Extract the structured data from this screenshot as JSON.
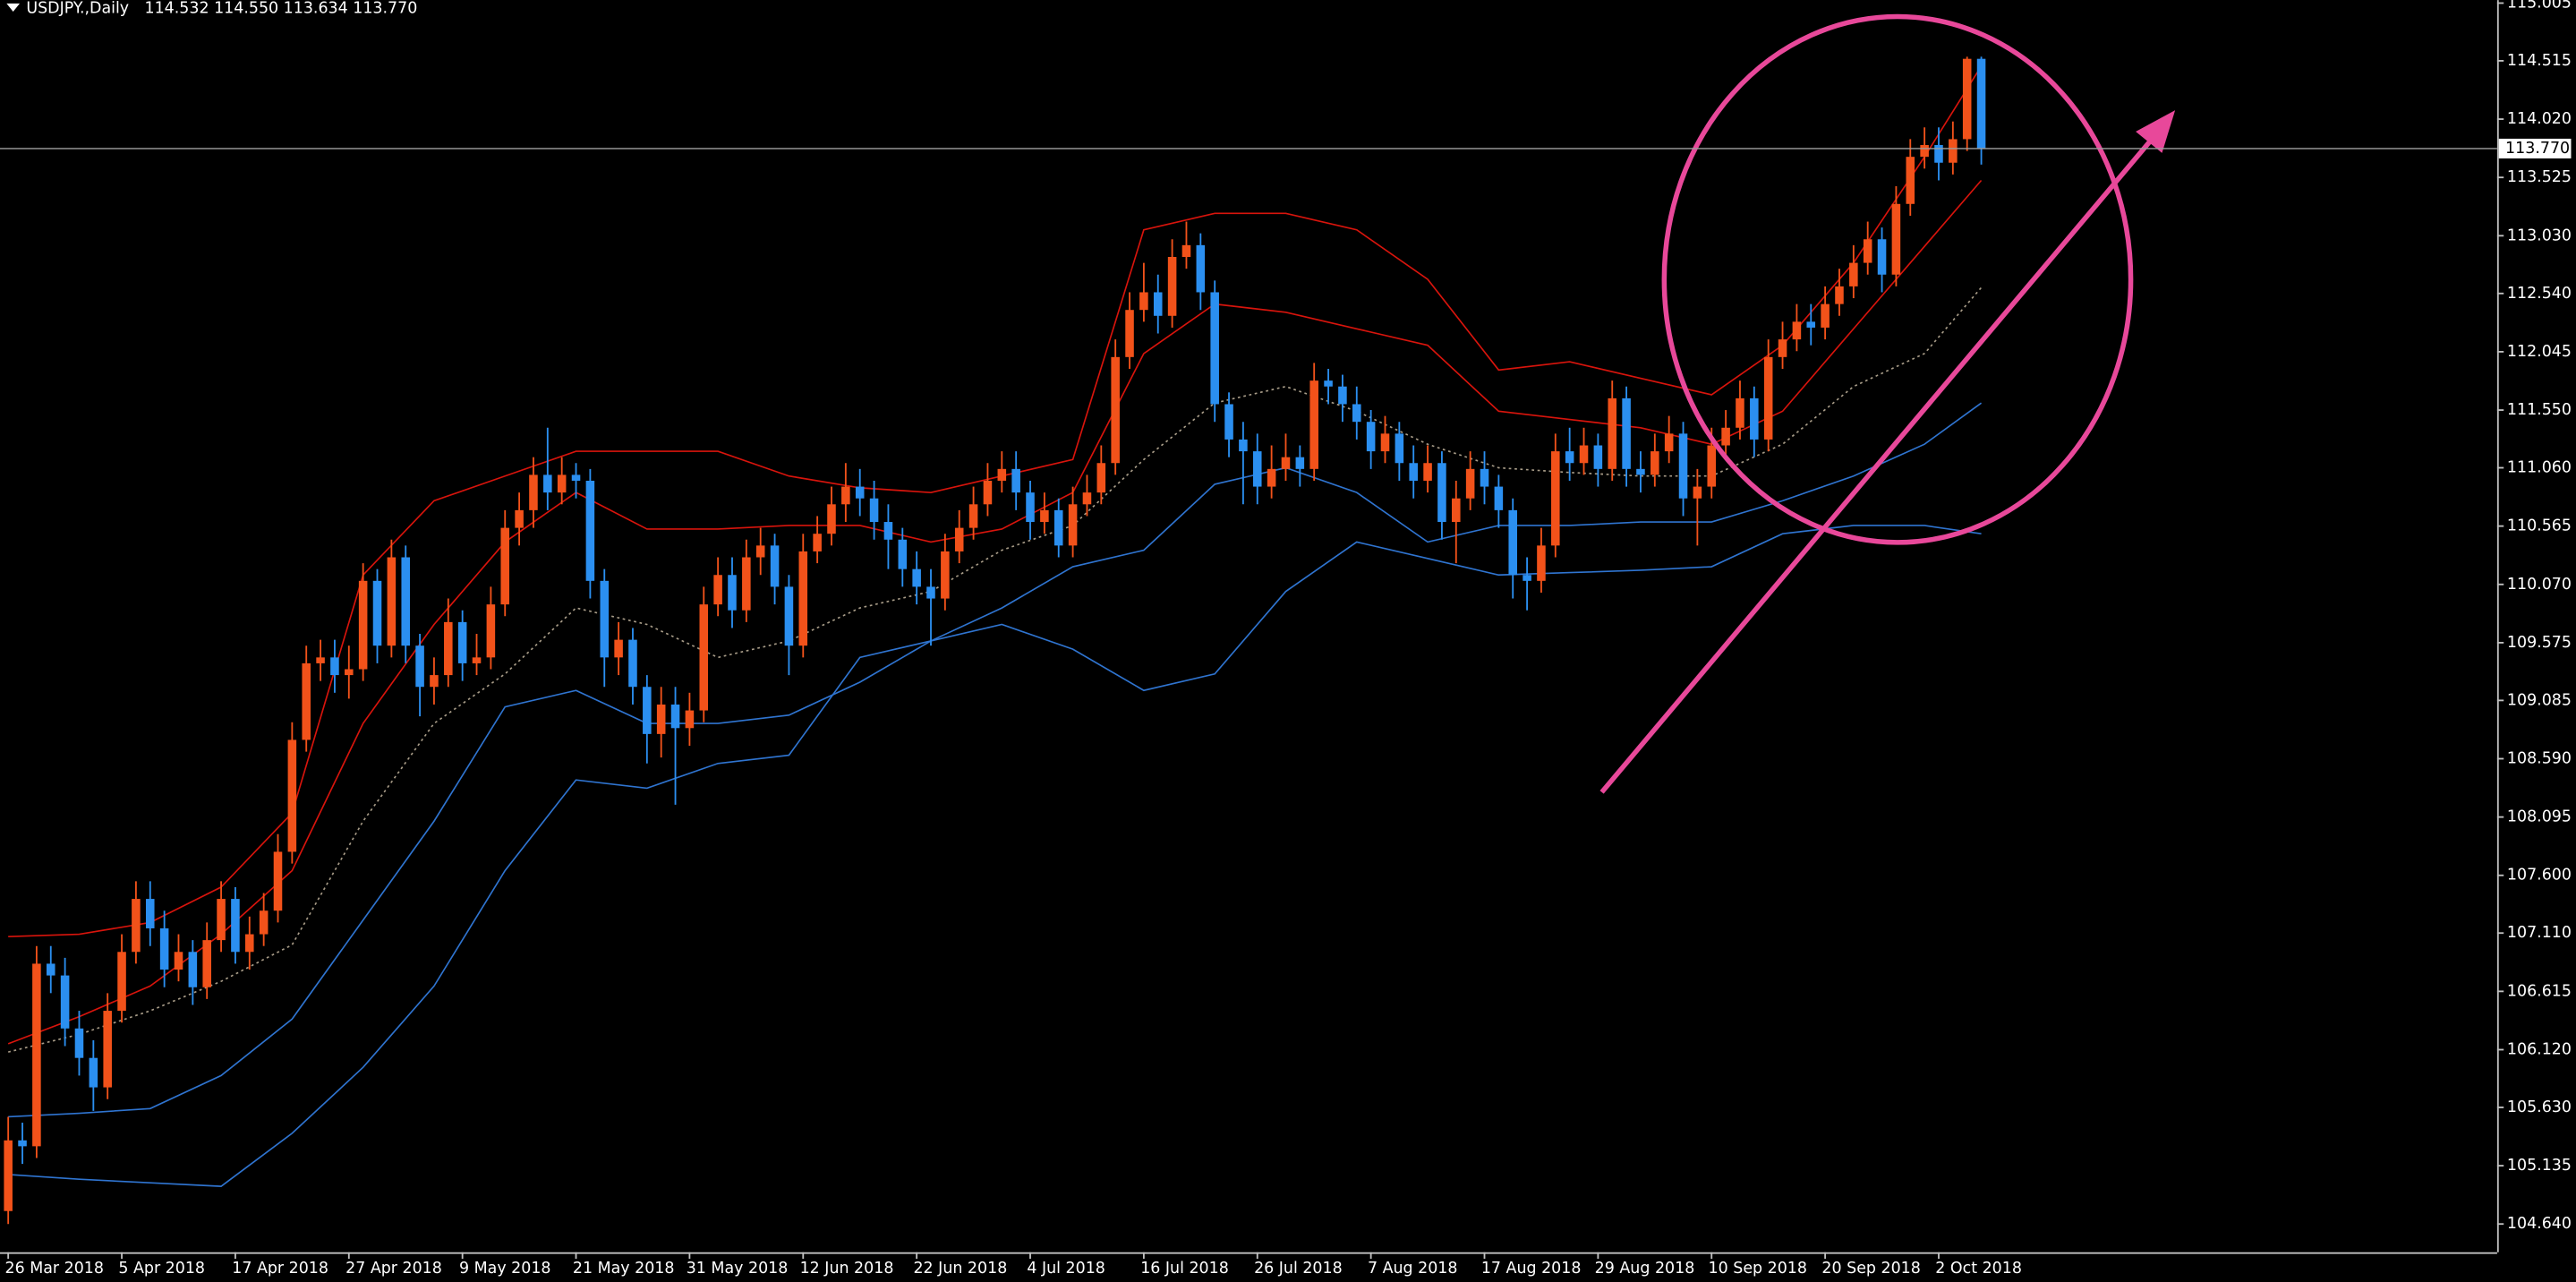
{
  "chart_data": {
    "type": "candlestick",
    "symbol": "USDJPY.,Daily",
    "ohlc_text": "114.532 114.550 113.634 113.770",
    "up_color": "#f2521a",
    "down_color": "#2b8ff0",
    "categories": [
      "26 Mar 2018",
      null,
      null,
      null,
      null,
      null,
      null,
      null,
      "5 Apr 2018",
      null,
      null,
      null,
      null,
      null,
      null,
      null,
      "17 Apr 2018",
      null,
      null,
      null,
      null,
      null,
      null,
      null,
      "27 Apr 2018",
      null,
      null,
      null,
      null,
      null,
      null,
      null,
      "9 May 2018",
      null,
      null,
      null,
      null,
      null,
      null,
      null,
      "21 May 2018",
      null,
      null,
      null,
      null,
      null,
      null,
      null,
      "31 May 2018",
      null,
      null,
      null,
      null,
      null,
      null,
      null,
      "12 Jun 2018",
      null,
      null,
      null,
      null,
      null,
      null,
      null,
      "22 Jun 2018",
      null,
      null,
      null,
      null,
      null,
      null,
      null,
      "4 Jul 2018",
      null,
      null,
      null,
      null,
      null,
      null,
      null,
      "16 Jul 2018",
      null,
      null,
      null,
      null,
      null,
      null,
      null,
      "26 Jul 2018",
      null,
      null,
      null,
      null,
      null,
      null,
      null,
      "7 Aug 2018",
      null,
      null,
      null,
      null,
      null,
      null,
      null,
      "17 Aug 2018",
      null,
      null,
      null,
      null,
      null,
      null,
      null,
      "29 Aug 2018",
      null,
      null,
      null,
      null,
      null,
      null,
      null,
      "10 Sep 2018",
      null,
      null,
      null,
      null,
      null,
      null,
      null,
      "20 Sep 2018",
      null,
      null,
      null,
      null,
      null,
      null,
      null,
      "2 Oct 2018",
      null,
      null,
      null
    ],
    "open": [
      104.75,
      105.35,
      105.3,
      106.85,
      106.75,
      106.3,
      106.05,
      105.8,
      106.45,
      106.95,
      107.4,
      107.15,
      106.8,
      106.95,
      106.65,
      107.05,
      107.4,
      106.95,
      107.1,
      107.3,
      107.8,
      108.75,
      109.4,
      109.45,
      109.3,
      109.35,
      110.1,
      109.55,
      110.3,
      109.55,
      109.2,
      109.3,
      109.75,
      109.4,
      109.45,
      109.9,
      110.55,
      110.7,
      111.0,
      110.85,
      111.0,
      110.95,
      110.1,
      109.45,
      109.6,
      109.2,
      108.8,
      109.05,
      108.85,
      109.0,
      109.9,
      110.15,
      109.85,
      110.3,
      110.4,
      110.05,
      109.55,
      110.35,
      110.5,
      110.75,
      110.9,
      110.8,
      110.6,
      110.45,
      110.2,
      110.05,
      109.95,
      110.35,
      110.55,
      110.75,
      110.95,
      111.05,
      110.85,
      110.6,
      110.7,
      110.4,
      110.75,
      110.85,
      111.1,
      112.0,
      112.4,
      112.55,
      112.35,
      112.85,
      112.95,
      112.55,
      111.6,
      111.3,
      111.2,
      110.9,
      111.05,
      111.15,
      111.05,
      111.8,
      111.75,
      111.6,
      111.45,
      111.2,
      111.35,
      111.1,
      110.95,
      111.1,
      110.6,
      110.8,
      111.05,
      110.9,
      110.7,
      110.15,
      110.1,
      110.4,
      111.2,
      111.1,
      111.25,
      111.05,
      111.65,
      111.05,
      111.0,
      111.2,
      111.35,
      110.8,
      110.9,
      111.25,
      111.4,
      111.65,
      111.3,
      112.0,
      112.15,
      112.3,
      112.25,
      112.45,
      112.6,
      112.8,
      113.0,
      112.7,
      113.3,
      113.7,
      113.8,
      113.65,
      113.85,
      114.532
    ],
    "high": [
      105.55,
      105.5,
      107.0,
      107.0,
      106.9,
      106.45,
      106.2,
      106.6,
      107.1,
      107.55,
      107.55,
      107.3,
      107.1,
      107.05,
      107.2,
      107.55,
      107.5,
      107.25,
      107.45,
      107.95,
      108.9,
      109.55,
      109.6,
      109.6,
      109.55,
      110.25,
      110.2,
      110.45,
      110.4,
      109.65,
      109.45,
      109.95,
      109.85,
      109.65,
      110.05,
      110.7,
      110.85,
      111.15,
      111.4,
      111.15,
      111.1,
      111.05,
      110.2,
      109.75,
      109.7,
      109.3,
      109.2,
      109.2,
      109.15,
      110.05,
      110.3,
      110.3,
      110.45,
      110.55,
      110.5,
      110.15,
      110.5,
      110.65,
      110.9,
      111.1,
      111.05,
      110.95,
      110.75,
      110.55,
      110.35,
      110.2,
      110.5,
      110.7,
      110.9,
      111.1,
      111.2,
      111.2,
      110.95,
      110.85,
      110.8,
      110.9,
      111.0,
      111.25,
      112.15,
      112.55,
      112.8,
      112.7,
      113.0,
      113.15,
      113.05,
      112.65,
      111.7,
      111.45,
      111.35,
      111.25,
      111.35,
      111.25,
      111.95,
      111.9,
      111.85,
      111.75,
      111.55,
      111.5,
      111.45,
      111.25,
      111.25,
      111.2,
      110.95,
      111.2,
      111.2,
      111.0,
      110.8,
      110.3,
      110.55,
      111.35,
      111.4,
      111.4,
      111.35,
      111.8,
      111.75,
      111.2,
      111.35,
      111.5,
      111.45,
      111.05,
      111.4,
      111.55,
      111.8,
      111.75,
      112.15,
      112.3,
      112.45,
      112.45,
      112.6,
      112.75,
      112.95,
      113.15,
      113.1,
      113.45,
      113.85,
      113.95,
      113.95,
      114.0,
      114.55,
      114.55
    ],
    "low": [
      104.64,
      105.15,
      105.2,
      106.6,
      106.15,
      105.9,
      105.6,
      105.7,
      106.35,
      106.85,
      107.0,
      106.65,
      106.7,
      106.5,
      106.55,
      106.95,
      106.85,
      106.8,
      107.0,
      107.2,
      107.7,
      108.65,
      109.25,
      109.15,
      109.1,
      109.25,
      109.4,
      109.45,
      109.4,
      108.95,
      109.05,
      109.2,
      109.25,
      109.3,
      109.35,
      109.8,
      110.4,
      110.55,
      110.7,
      110.75,
      110.8,
      109.95,
      109.2,
      109.3,
      109.05,
      108.55,
      108.6,
      108.2,
      108.7,
      108.9,
      109.8,
      109.7,
      109.75,
      110.15,
      109.9,
      109.3,
      109.45,
      110.25,
      110.4,
      110.6,
      110.65,
      110.45,
      110.2,
      110.05,
      109.9,
      109.55,
      109.85,
      110.25,
      110.45,
      110.65,
      110.85,
      110.7,
      110.45,
      110.5,
      110.3,
      110.3,
      110.65,
      110.75,
      111.0,
      111.9,
      112.3,
      112.2,
      112.25,
      112.75,
      112.4,
      111.45,
      111.15,
      110.75,
      110.75,
      110.8,
      110.95,
      110.9,
      110.95,
      111.6,
      111.45,
      111.3,
      111.05,
      111.1,
      110.95,
      110.8,
      110.85,
      110.45,
      110.25,
      110.7,
      110.75,
      110.55,
      109.95,
      109.85,
      110.0,
      110.3,
      110.95,
      111.0,
      110.9,
      110.95,
      110.9,
      110.85,
      110.9,
      111.1,
      110.65,
      110.4,
      110.8,
      111.15,
      111.3,
      111.15,
      111.2,
      111.9,
      112.05,
      112.1,
      112.15,
      112.35,
      112.5,
      112.7,
      112.55,
      112.6,
      113.2,
      113.6,
      113.5,
      113.55,
      113.75,
      113.634
    ],
    "close": [
      105.35,
      105.3,
      106.85,
      106.75,
      106.3,
      106.05,
      105.8,
      106.45,
      106.95,
      107.4,
      107.15,
      106.8,
      106.95,
      106.65,
      107.05,
      107.4,
      106.95,
      107.1,
      107.3,
      107.8,
      108.75,
      109.4,
      109.45,
      109.3,
      109.35,
      110.1,
      109.55,
      110.3,
      109.55,
      109.2,
      109.3,
      109.75,
      109.4,
      109.45,
      109.9,
      110.55,
      110.7,
      111.0,
      110.85,
      111.0,
      110.95,
      110.1,
      109.45,
      109.6,
      109.2,
      108.8,
      109.05,
      108.85,
      109.0,
      109.9,
      110.15,
      109.85,
      110.3,
      110.4,
      110.05,
      109.55,
      110.35,
      110.5,
      110.75,
      110.9,
      110.8,
      110.6,
      110.45,
      110.2,
      110.05,
      109.95,
      110.35,
      110.55,
      110.75,
      110.95,
      111.05,
      110.85,
      110.6,
      110.7,
      110.4,
      110.75,
      110.85,
      111.1,
      112.0,
      112.4,
      112.55,
      112.35,
      112.85,
      112.95,
      112.55,
      111.6,
      111.3,
      111.2,
      110.9,
      111.05,
      111.15,
      111.05,
      111.8,
      111.75,
      111.6,
      111.45,
      111.2,
      111.35,
      111.1,
      110.95,
      111.1,
      110.6,
      110.8,
      111.05,
      110.9,
      110.7,
      110.15,
      110.1,
      110.4,
      111.2,
      111.1,
      111.25,
      111.05,
      111.65,
      111.05,
      111.0,
      111.2,
      111.35,
      110.8,
      110.9,
      111.25,
      111.4,
      111.65,
      111.3,
      112.0,
      112.15,
      112.3,
      112.25,
      112.45,
      112.6,
      112.8,
      113.0,
      112.7,
      113.3,
      113.7,
      113.8,
      113.65,
      113.85,
      114.532,
      113.77
    ],
    "band_x": [
      0,
      5,
      10,
      15,
      20,
      25,
      30,
      35,
      40,
      45,
      50,
      55,
      60,
      65,
      70,
      75,
      80,
      85,
      90,
      95,
      100,
      105,
      110,
      115,
      120,
      125,
      130,
      135,
      139
    ],
    "bands": [
      {
        "color": "#d8140c",
        "dash": false,
        "values": [
          107.08,
          107.1,
          107.2,
          107.5,
          108.13,
          110.15,
          110.78,
          110.99,
          111.2,
          111.2,
          111.2,
          110.99,
          110.89,
          110.85,
          110.99,
          111.13,
          113.08,
          113.22,
          113.22,
          113.08,
          112.66,
          111.89,
          111.96,
          111.82,
          111.68,
          112.1,
          112.8,
          113.7,
          114.47
        ]
      },
      {
        "color": "#d8140c",
        "dash": false,
        "values": [
          106.17,
          106.4,
          106.66,
          107.1,
          107.64,
          108.89,
          109.73,
          110.43,
          110.85,
          110.54,
          110.54,
          110.57,
          110.57,
          110.43,
          110.54,
          110.85,
          112.03,
          112.45,
          112.38,
          112.24,
          112.1,
          111.54,
          111.47,
          111.4,
          111.26,
          111.54,
          112.24,
          112.94,
          113.5
        ]
      },
      {
        "color": "#a89c88",
        "dash": true,
        "values": [
          106.1,
          106.25,
          106.45,
          106.7,
          107.01,
          108.06,
          108.89,
          109.31,
          109.87,
          109.73,
          109.45,
          109.59,
          109.87,
          110.01,
          110.36,
          110.57,
          111.13,
          111.61,
          111.75,
          111.54,
          111.26,
          111.06,
          111.02,
          110.99,
          110.99,
          111.26,
          111.75,
          112.03,
          112.59
        ]
      },
      {
        "color": "#2f74d0",
        "dash": false,
        "values": [
          105.55,
          105.58,
          105.62,
          105.9,
          106.38,
          107.22,
          108.06,
          109.03,
          109.17,
          108.89,
          108.89,
          108.96,
          109.24,
          109.59,
          109.87,
          110.22,
          110.36,
          110.92,
          111.06,
          110.85,
          110.43,
          110.57,
          110.57,
          110.6,
          110.6,
          110.78,
          110.99,
          111.26,
          111.61
        ]
      },
      {
        "color": "#2f74d0",
        "dash": false,
        "values": [
          105.06,
          105.02,
          104.99,
          104.96,
          105.41,
          105.97,
          106.66,
          107.64,
          108.41,
          108.34,
          108.55,
          108.62,
          109.45,
          109.59,
          109.73,
          109.52,
          109.17,
          109.31,
          110.01,
          110.43,
          110.29,
          110.15,
          110.17,
          110.19,
          110.22,
          110.5,
          110.57,
          110.57,
          110.5
        ]
      }
    ],
    "current_price": {
      "value": 113.77,
      "label": "113.770"
    },
    "ylim": [
      104.4,
      115.03
    ],
    "yticks": [
      115.005,
      114.515,
      {
        "value": 114.02,
        "label": "114.020"
      },
      113.525,
      {
        "value": 113.03,
        "label": "113.030"
      },
      {
        "value": 112.54,
        "label": "112.540"
      },
      112.045,
      {
        "value": 111.55,
        "label": "111.550"
      },
      {
        "value": 111.06,
        "label": "111.060"
      },
      110.565,
      {
        "value": 110.07,
        "label": "110.070"
      },
      109.575,
      109.085,
      {
        "value": 108.59,
        "label": "108.590"
      },
      108.095,
      {
        "value": 107.6,
        "label": "107.600"
      },
      {
        "value": 107.11,
        "label": "107.110"
      },
      106.615,
      {
        "value": 106.12,
        "label": "106.120"
      },
      {
        "value": 105.63,
        "label": "105.630"
      },
      105.135,
      {
        "value": 104.64,
        "label": "104.640"
      }
    ]
  }
}
